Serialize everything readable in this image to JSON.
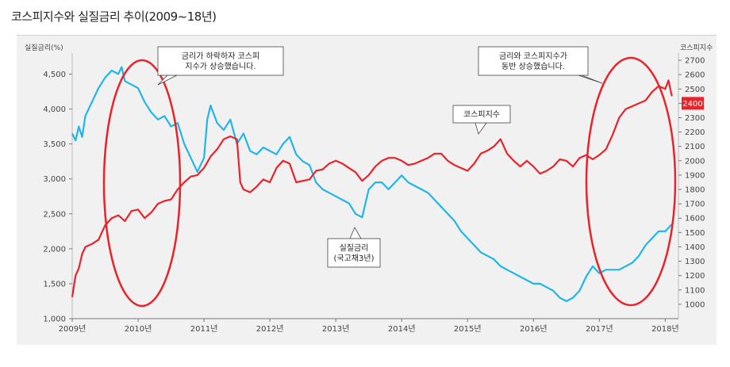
{
  "title": "코스피지수와 실질금리 추이(2009~18년)",
  "chart_data": {
    "type": "line",
    "title": "코스피지수와 실질금리 추이(2009~18년)",
    "x_ticks": [
      "2009년",
      "2010년",
      "2011년",
      "2012년",
      "2013년",
      "2014년",
      "2015년",
      "2016년",
      "2017년",
      "2018년"
    ],
    "left_axis": {
      "label": "실질금리(%)",
      "ticks": [
        "1,000",
        "1,500",
        "2,000",
        "2,500",
        "3,000",
        "3,500",
        "4,000",
        "4,500"
      ],
      "range": [
        1000,
        4800
      ]
    },
    "right_axis": {
      "label": "코스피지수",
      "ticks": [
        "1000",
        "1100",
        "1200",
        "1300",
        "1400",
        "1500",
        "1600",
        "1700",
        "1800",
        "1900",
        "2000",
        "2100",
        "2200",
        "2300",
        "2400",
        "2500",
        "2600",
        "2700"
      ],
      "range": [
        900,
        2750
      ],
      "highlight": "2400"
    },
    "series": [
      {
        "name": "실질금리(국고채3년)",
        "axis": "left",
        "color": "#22b5e8",
        "x": [
          2009.0,
          2009.05,
          2009.1,
          2009.15,
          2009.2,
          2009.3,
          2009.4,
          2009.5,
          2009.6,
          2009.7,
          2009.75,
          2009.8,
          2009.9,
          2010.0,
          2010.1,
          2010.2,
          2010.3,
          2010.4,
          2010.5,
          2010.6,
          2010.7,
          2010.8,
          2010.9,
          2011.0,
          2011.05,
          2011.1,
          2011.2,
          2011.3,
          2011.4,
          2011.5,
          2011.6,
          2011.7,
          2011.8,
          2011.9,
          2012.0,
          2012.1,
          2012.2,
          2012.3,
          2012.4,
          2012.5,
          2012.6,
          2012.7,
          2012.8,
          2012.9,
          2013.0,
          2013.1,
          2013.2,
          2013.3,
          2013.4,
          2013.5,
          2013.6,
          2013.7,
          2013.8,
          2013.9,
          2014.0,
          2014.1,
          2014.2,
          2014.3,
          2014.4,
          2014.5,
          2014.6,
          2014.7,
          2014.8,
          2014.9,
          2015.0,
          2015.1,
          2015.2,
          2015.3,
          2015.4,
          2015.5,
          2015.6,
          2015.7,
          2015.8,
          2015.9,
          2016.0,
          2016.1,
          2016.2,
          2016.3,
          2016.4,
          2016.5,
          2016.6,
          2016.7,
          2016.8,
          2016.9,
          2017.0,
          2017.1,
          2017.2,
          2017.3,
          2017.4,
          2017.5,
          2017.6,
          2017.7,
          2017.8,
          2017.9,
          2018.0,
          2018.1
        ],
        "values": [
          3650,
          3550,
          3750,
          3600,
          3900,
          4100,
          4300,
          4450,
          4550,
          4500,
          4600,
          4400,
          4350,
          4300,
          4100,
          3950,
          3850,
          3900,
          3750,
          3800,
          3500,
          3300,
          3100,
          3300,
          3850,
          4050,
          3800,
          3700,
          3850,
          3500,
          3650,
          3400,
          3350,
          3450,
          3400,
          3350,
          3500,
          3600,
          3350,
          3250,
          3200,
          2950,
          2850,
          2800,
          2750,
          2700,
          2650,
          2500,
          2450,
          2850,
          2950,
          2950,
          2850,
          2950,
          3050,
          2950,
          2900,
          2850,
          2800,
          2700,
          2600,
          2500,
          2400,
          2250,
          2150,
          2050,
          1950,
          1900,
          1850,
          1750,
          1700,
          1650,
          1600,
          1550,
          1500,
          1500,
          1450,
          1400,
          1300,
          1250,
          1300,
          1400,
          1600,
          1750,
          1650,
          1700,
          1700,
          1700,
          1750,
          1800,
          1900,
          2050,
          2150,
          2250,
          2250,
          2350
        ]
      },
      {
        "name": "코스피지수",
        "axis": "right",
        "color": "#e8232b",
        "x": [
          2009.0,
          2009.05,
          2009.1,
          2009.15,
          2009.2,
          2009.3,
          2009.4,
          2009.5,
          2009.6,
          2009.7,
          2009.8,
          2009.9,
          2010.0,
          2010.1,
          2010.2,
          2010.3,
          2010.4,
          2010.5,
          2010.6,
          2010.7,
          2010.8,
          2010.9,
          2011.0,
          2011.1,
          2011.2,
          2011.3,
          2011.4,
          2011.5,
          2011.55,
          2011.6,
          2011.7,
          2011.8,
          2011.9,
          2012.0,
          2012.1,
          2012.2,
          2012.3,
          2012.4,
          2012.5,
          2012.6,
          2012.7,
          2012.8,
          2012.9,
          2013.0,
          2013.1,
          2013.2,
          2013.3,
          2013.4,
          2013.5,
          2013.6,
          2013.7,
          2013.8,
          2013.9,
          2014.0,
          2014.1,
          2014.2,
          2014.3,
          2014.4,
          2014.5,
          2014.6,
          2014.7,
          2014.8,
          2014.9,
          2015.0,
          2015.1,
          2015.2,
          2015.3,
          2015.4,
          2015.5,
          2015.6,
          2015.7,
          2015.8,
          2015.9,
          2016.0,
          2016.1,
          2016.2,
          2016.3,
          2016.4,
          2016.5,
          2016.6,
          2016.7,
          2016.8,
          2016.9,
          2017.0,
          2017.1,
          2017.2,
          2017.3,
          2017.4,
          2017.5,
          2017.6,
          2017.7,
          2017.8,
          2017.9,
          2018.0,
          2018.05,
          2018.1
        ],
        "values": [
          1050,
          1200,
          1250,
          1350,
          1400,
          1420,
          1450,
          1550,
          1600,
          1620,
          1580,
          1650,
          1660,
          1600,
          1640,
          1700,
          1720,
          1730,
          1800,
          1850,
          1890,
          1900,
          1950,
          2030,
          2080,
          2150,
          2170,
          2150,
          1850,
          1800,
          1780,
          1820,
          1870,
          1850,
          1950,
          2000,
          1980,
          1850,
          1860,
          1870,
          1930,
          1940,
          1980,
          2000,
          1980,
          1950,
          1920,
          1860,
          1900,
          1960,
          2000,
          2020,
          2020,
          2000,
          1970,
          1980,
          2000,
          2020,
          2050,
          2050,
          2000,
          1970,
          1950,
          1930,
          1980,
          2050,
          2070,
          2100,
          2150,
          2050,
          2000,
          1960,
          2000,
          1960,
          1910,
          1930,
          1960,
          2010,
          2000,
          1960,
          2020,
          2040,
          2010,
          2040,
          2080,
          2180,
          2300,
          2360,
          2380,
          2400,
          2420,
          2480,
          2520,
          2500,
          2560,
          2450
        ]
      }
    ],
    "callouts": [
      {
        "lines": [
          "금리가 하락하자 코스피",
          "지수가 상승했습니다."
        ]
      },
      {
        "lines": [
          "금리와 코스피지수가",
          "동반 상승했습니다."
        ]
      },
      {
        "lines": [
          "코스피지수"
        ]
      },
      {
        "lines": [
          "실질금리",
          "(국고채3년)"
        ]
      }
    ]
  }
}
